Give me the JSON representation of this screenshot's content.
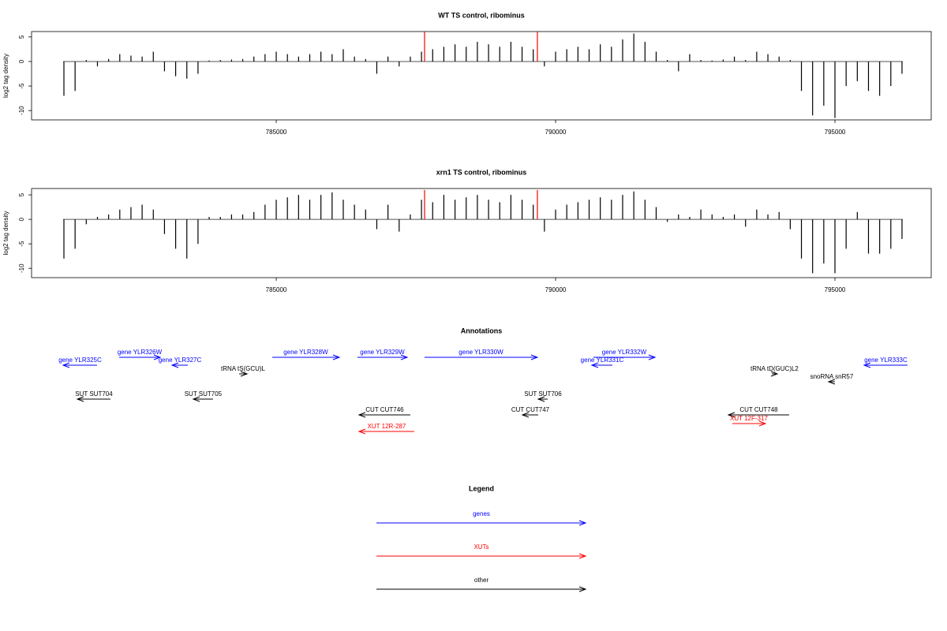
{
  "chart_data": [
    {
      "type": "bar",
      "title": "WT TS control, ribominus",
      "ylabel": "log2 tag density",
      "color": "#000000",
      "x": [
        781200,
        781400,
        781600,
        781800,
        782000,
        782200,
        782400,
        782600,
        782800,
        783000,
        783200,
        783400,
        783600,
        783800,
        784000,
        784200,
        784400,
        784600,
        784800,
        785000,
        785200,
        785400,
        785600,
        785800,
        786000,
        786200,
        786400,
        786600,
        786800,
        787000,
        787200,
        787400,
        787600,
        787800,
        788000,
        788200,
        788400,
        788600,
        788800,
        789000,
        789200,
        789400,
        789600,
        789800,
        790000,
        790200,
        790400,
        790600,
        790800,
        791000,
        791200,
        791400,
        791600,
        791800,
        792000,
        792200,
        792400,
        792600,
        792800,
        793000,
        793200,
        793400,
        793600,
        793800,
        794000,
        794200,
        794400,
        794600,
        794800,
        795000,
        795200,
        795400,
        795600,
        795800,
        796000,
        796200
      ],
      "values": [
        -7,
        -6,
        0.3,
        -1,
        0.5,
        1.5,
        1.2,
        1,
        2,
        -2,
        -3,
        -3.5,
        -2.5,
        0.2,
        0.3,
        0.4,
        0.5,
        1,
        1.5,
        2,
        1.5,
        1,
        1.5,
        2,
        1.5,
        2.5,
        1,
        0.5,
        -2.5,
        1,
        -1,
        1,
        2,
        2.5,
        3,
        3.5,
        3,
        4,
        3.5,
        3,
        4,
        3,
        2.5,
        -1,
        2,
        2.5,
        3,
        2.5,
        3.5,
        3,
        4.5,
        5.7,
        4,
        2,
        0.3,
        -2,
        1.5,
        0.3,
        0.2,
        0.4,
        1,
        0.3,
        2,
        1.5,
        1,
        0.3,
        -6,
        -11,
        -9,
        -11.5,
        -5,
        -4,
        -6,
        -7,
        -5,
        -2.5
      ],
      "highlights": {
        "x": [
          787655,
          789674
        ],
        "values": [
          6,
          6
        ],
        "color": "#ff0000"
      },
      "xlim": [
        780621,
        796723
      ],
      "xticks": [
        785000,
        790000,
        795000
      ],
      "ylim": [
        -11.9,
        6.1
      ],
      "yticks": [
        5,
        0,
        -5,
        -10
      ]
    },
    {
      "type": "bar",
      "title": "xrn1 TS control, ribominus",
      "ylabel": "log2 tag density",
      "color": "#000000",
      "x": [
        781200,
        781400,
        781600,
        781800,
        782000,
        782200,
        782400,
        782600,
        782800,
        783000,
        783200,
        783400,
        783600,
        783800,
        784000,
        784200,
        784400,
        784600,
        784800,
        785000,
        785200,
        785400,
        785600,
        785800,
        786000,
        786200,
        786400,
        786600,
        786800,
        787000,
        787200,
        787400,
        787600,
        787800,
        788000,
        788200,
        788400,
        788600,
        788800,
        789000,
        789200,
        789400,
        789600,
        789800,
        790000,
        790200,
        790400,
        790600,
        790800,
        791000,
        791200,
        791400,
        791600,
        791800,
        792000,
        792200,
        792400,
        792600,
        792800,
        793000,
        793200,
        793400,
        793600,
        793800,
        794000,
        794200,
        794400,
        794600,
        794800,
        795000,
        795200,
        795400,
        795600,
        795800,
        796000,
        796200
      ],
      "values": [
        -8,
        -6,
        -1,
        0.5,
        1,
        2,
        2.5,
        3,
        2,
        -3,
        -6,
        -8,
        -5,
        0.5,
        0.5,
        1,
        1,
        1.5,
        3,
        4,
        4.5,
        5,
        4,
        5,
        5.5,
        4,
        3,
        2,
        -2,
        3,
        -2.5,
        1,
        4,
        3.5,
        5,
        4,
        4.5,
        5,
        4,
        3.5,
        5,
        4,
        3,
        -2.5,
        2,
        3,
        3.5,
        4,
        4.5,
        4,
        5,
        5.7,
        4,
        2.5,
        -0.5,
        1,
        0.5,
        2,
        1,
        0.5,
        1,
        -1.5,
        2,
        1,
        1.5,
        -2,
        -8,
        -11,
        -9,
        -11,
        -6,
        1.5,
        -7,
        -7,
        -6,
        -4
      ],
      "highlights": {
        "x": [
          787655,
          789674
        ],
        "values": [
          6,
          6
        ],
        "color": "#ff0000"
      },
      "xlim": [
        780621,
        796723
      ],
      "xticks": [
        785000,
        790000,
        795000
      ],
      "ylim": [
        -11.9,
        6.3
      ],
      "yticks": [
        5,
        0,
        -5,
        -10
      ]
    }
  ],
  "annotations": {
    "title": "Annotations",
    "features": [
      {
        "label": "gene YLR325C",
        "start": 781186,
        "end": 781793,
        "strand": "-",
        "color": "#0000ff"
      },
      {
        "label": "gene YLR326W",
        "start": 782189,
        "end": 782923,
        "strand": "+",
        "color": "#0000ff"
      },
      {
        "label": "gene YLR327C",
        "start": 783135,
        "end": 783418,
        "strand": "-",
        "color": "#0000ff"
      },
      {
        "label": "tRNA tS(GCU)L",
        "start": 784336,
        "end": 784477,
        "strand": "+",
        "color": "#000000"
      },
      {
        "label": "gene YLR328W",
        "start": 784929,
        "end": 786129,
        "strand": "+",
        "color": "#0000ff"
      },
      {
        "label": "gene YLR329W",
        "start": 786454,
        "end": 787344,
        "strand": "+",
        "color": "#0000ff"
      },
      {
        "label": "gene YLR330W",
        "start": 787655,
        "end": 789674,
        "strand": "+",
        "color": "#0000ff"
      },
      {
        "label": "gene YLR331C",
        "start": 790649,
        "end": 791016,
        "strand": "-",
        "color": "#0000ff"
      },
      {
        "label": "gene YLR332W",
        "start": 790677,
        "end": 791779,
        "strand": "+",
        "color": "#0000ff"
      },
      {
        "label": "gene YLR333C",
        "start": 795522,
        "end": 796299,
        "strand": "-",
        "color": "#0000ff"
      },
      {
        "label": "tRNA tD(GUC)L2",
        "start": 793869,
        "end": 793968,
        "strand": "+",
        "color": "#000000"
      },
      {
        "label": "snoRNA snR57",
        "start": 794886,
        "end": 794999,
        "strand": "-",
        "color": "#000000"
      },
      {
        "label": "SUT SUT704",
        "start": 781440,
        "end": 782033,
        "strand": "-",
        "color": "#000000"
      },
      {
        "label": "SUT SUT705",
        "start": 783516,
        "end": 783868,
        "strand": "-",
        "color": "#000000"
      },
      {
        "label": "SUT SUT706",
        "start": 789689,
        "end": 789858,
        "strand": "-",
        "color": "#000000"
      },
      {
        "label": "CUT CUT746",
        "start": 786482,
        "end": 787400,
        "strand": "-",
        "color": "#000000"
      },
      {
        "label": "CUT CUT747",
        "start": 789406,
        "end": 789689,
        "strand": "-",
        "color": "#000000"
      },
      {
        "label": "CUT CUT748",
        "start": 793093,
        "end": 794180,
        "strand": "-",
        "color": "#000000"
      },
      {
        "label": "XUT 12R-287",
        "start": 786482,
        "end": 787471,
        "strand": "-",
        "color": "#ff0000"
      },
      {
        "label": "XUT 12F-317",
        "start": 793164,
        "end": 793756,
        "strand": "+",
        "color": "#ff0000"
      }
    ]
  },
  "legend": {
    "title": "Legend",
    "items": [
      {
        "label": "genes",
        "color": "#0000ff"
      },
      {
        "label": "XUTs",
        "color": "#ff0000"
      },
      {
        "label": "other",
        "color": "#000000"
      }
    ]
  }
}
